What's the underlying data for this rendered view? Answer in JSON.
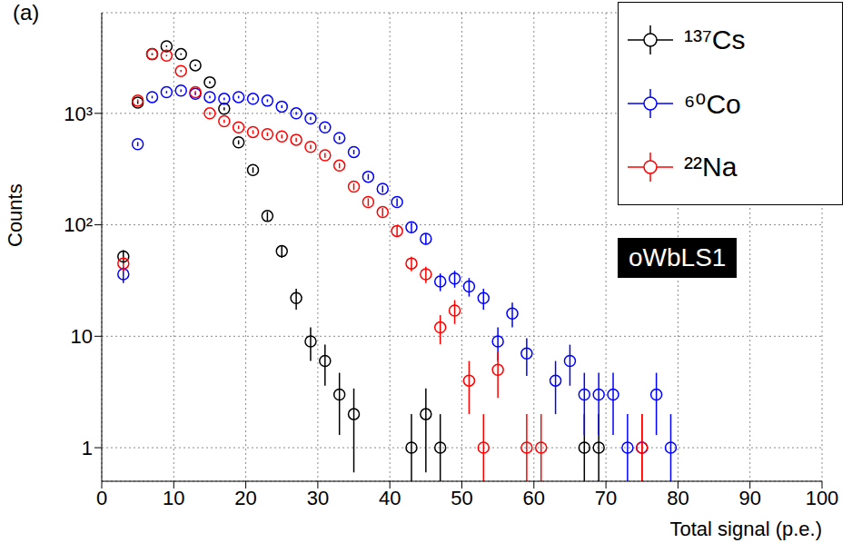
{
  "chart_data": {
    "type": "scatter",
    "panel_label": "(a)",
    "annotation": "oWbLS1",
    "xlabel": "Total signal (p.e.)",
    "ylabel": "Counts",
    "log": "y",
    "grid": true,
    "legend": "upper right",
    "marker": "open circle",
    "xlim": [
      0,
      100
    ],
    "xticks": [
      0,
      10,
      20,
      30,
      40,
      50,
      60,
      70,
      80,
      90,
      100
    ],
    "ylim": [
      0.5,
      8000
    ],
    "yticks": [
      1,
      10,
      {
        "value": 100,
        "label": "10²"
      },
      {
        "value": 1000,
        "label": "10³"
      }
    ],
    "series": [
      {
        "name": "¹³⁷Cs",
        "color": "#000000",
        "x": [
          3,
          5,
          7,
          9,
          11,
          13,
          15,
          17,
          19,
          21,
          23,
          25,
          27,
          29,
          31,
          33,
          35,
          43,
          45,
          47,
          67,
          69
        ],
        "values": [
          52,
          1250,
          3400,
          4000,
          3400,
          2700,
          1900,
          1100,
          550,
          310,
          120,
          58,
          22,
          9,
          6,
          3,
          2,
          1,
          2,
          1,
          1,
          1
        ],
        "errors": [
          7.2,
          35,
          58,
          63,
          58,
          52,
          44,
          33,
          23,
          18,
          11,
          7.6,
          4.7,
          3,
          2.4,
          1.7,
          1.4,
          1,
          1.4,
          1,
          1,
          1
        ]
      },
      {
        "name": "⁶⁰Co",
        "color": "#0000ff",
        "x": [
          3,
          5,
          7,
          9,
          11,
          13,
          15,
          17,
          19,
          21,
          23,
          25,
          27,
          29,
          31,
          33,
          35,
          37,
          39,
          41,
          43,
          45,
          47,
          49,
          51,
          53,
          55,
          57,
          59,
          63,
          65,
          67,
          69,
          71,
          73,
          75,
          77,
          79
        ],
        "values": [
          36,
          530,
          1400,
          1550,
          1600,
          1500,
          1400,
          1350,
          1400,
          1350,
          1300,
          1150,
          1000,
          900,
          750,
          600,
          450,
          270,
          210,
          160,
          95,
          75,
          31,
          33,
          28,
          22,
          9,
          16,
          7,
          4,
          6,
          3,
          3,
          3,
          1,
          1,
          3,
          1
        ],
        "errors": [
          6,
          23,
          37,
          39,
          40,
          39,
          37,
          37,
          37,
          37,
          36,
          34,
          32,
          30,
          27,
          24,
          21,
          16,
          14.5,
          12.6,
          9.7,
          8.7,
          5.6,
          5.7,
          5.3,
          4.7,
          3,
          4,
          2.6,
          2,
          2.4,
          1.7,
          1.7,
          1.7,
          1,
          1,
          1.7,
          1
        ]
      },
      {
        "name": "²²Na",
        "color": "#ff0000",
        "x": [
          3,
          5,
          7,
          9,
          11,
          13,
          15,
          17,
          19,
          21,
          23,
          25,
          27,
          29,
          31,
          33,
          35,
          37,
          39,
          41,
          43,
          45,
          47,
          49,
          51,
          53,
          55,
          59,
          61,
          75
        ],
        "values": [
          45,
          1300,
          3400,
          3300,
          2400,
          1550,
          1000,
          850,
          750,
          680,
          650,
          620,
          580,
          500,
          420,
          340,
          220,
          160,
          130,
          88,
          45,
          36,
          12,
          17,
          4,
          1,
          5,
          1,
          1,
          1
        ],
        "errors": [
          6.7,
          36,
          58,
          57,
          49,
          39,
          32,
          29,
          27,
          26,
          25.5,
          25,
          24,
          22,
          20.5,
          18.4,
          14.8,
          12.6,
          11.4,
          9.4,
          6.7,
          6,
          3.5,
          4.1,
          2,
          1,
          2.2,
          1,
          1,
          1
        ]
      }
    ]
  }
}
